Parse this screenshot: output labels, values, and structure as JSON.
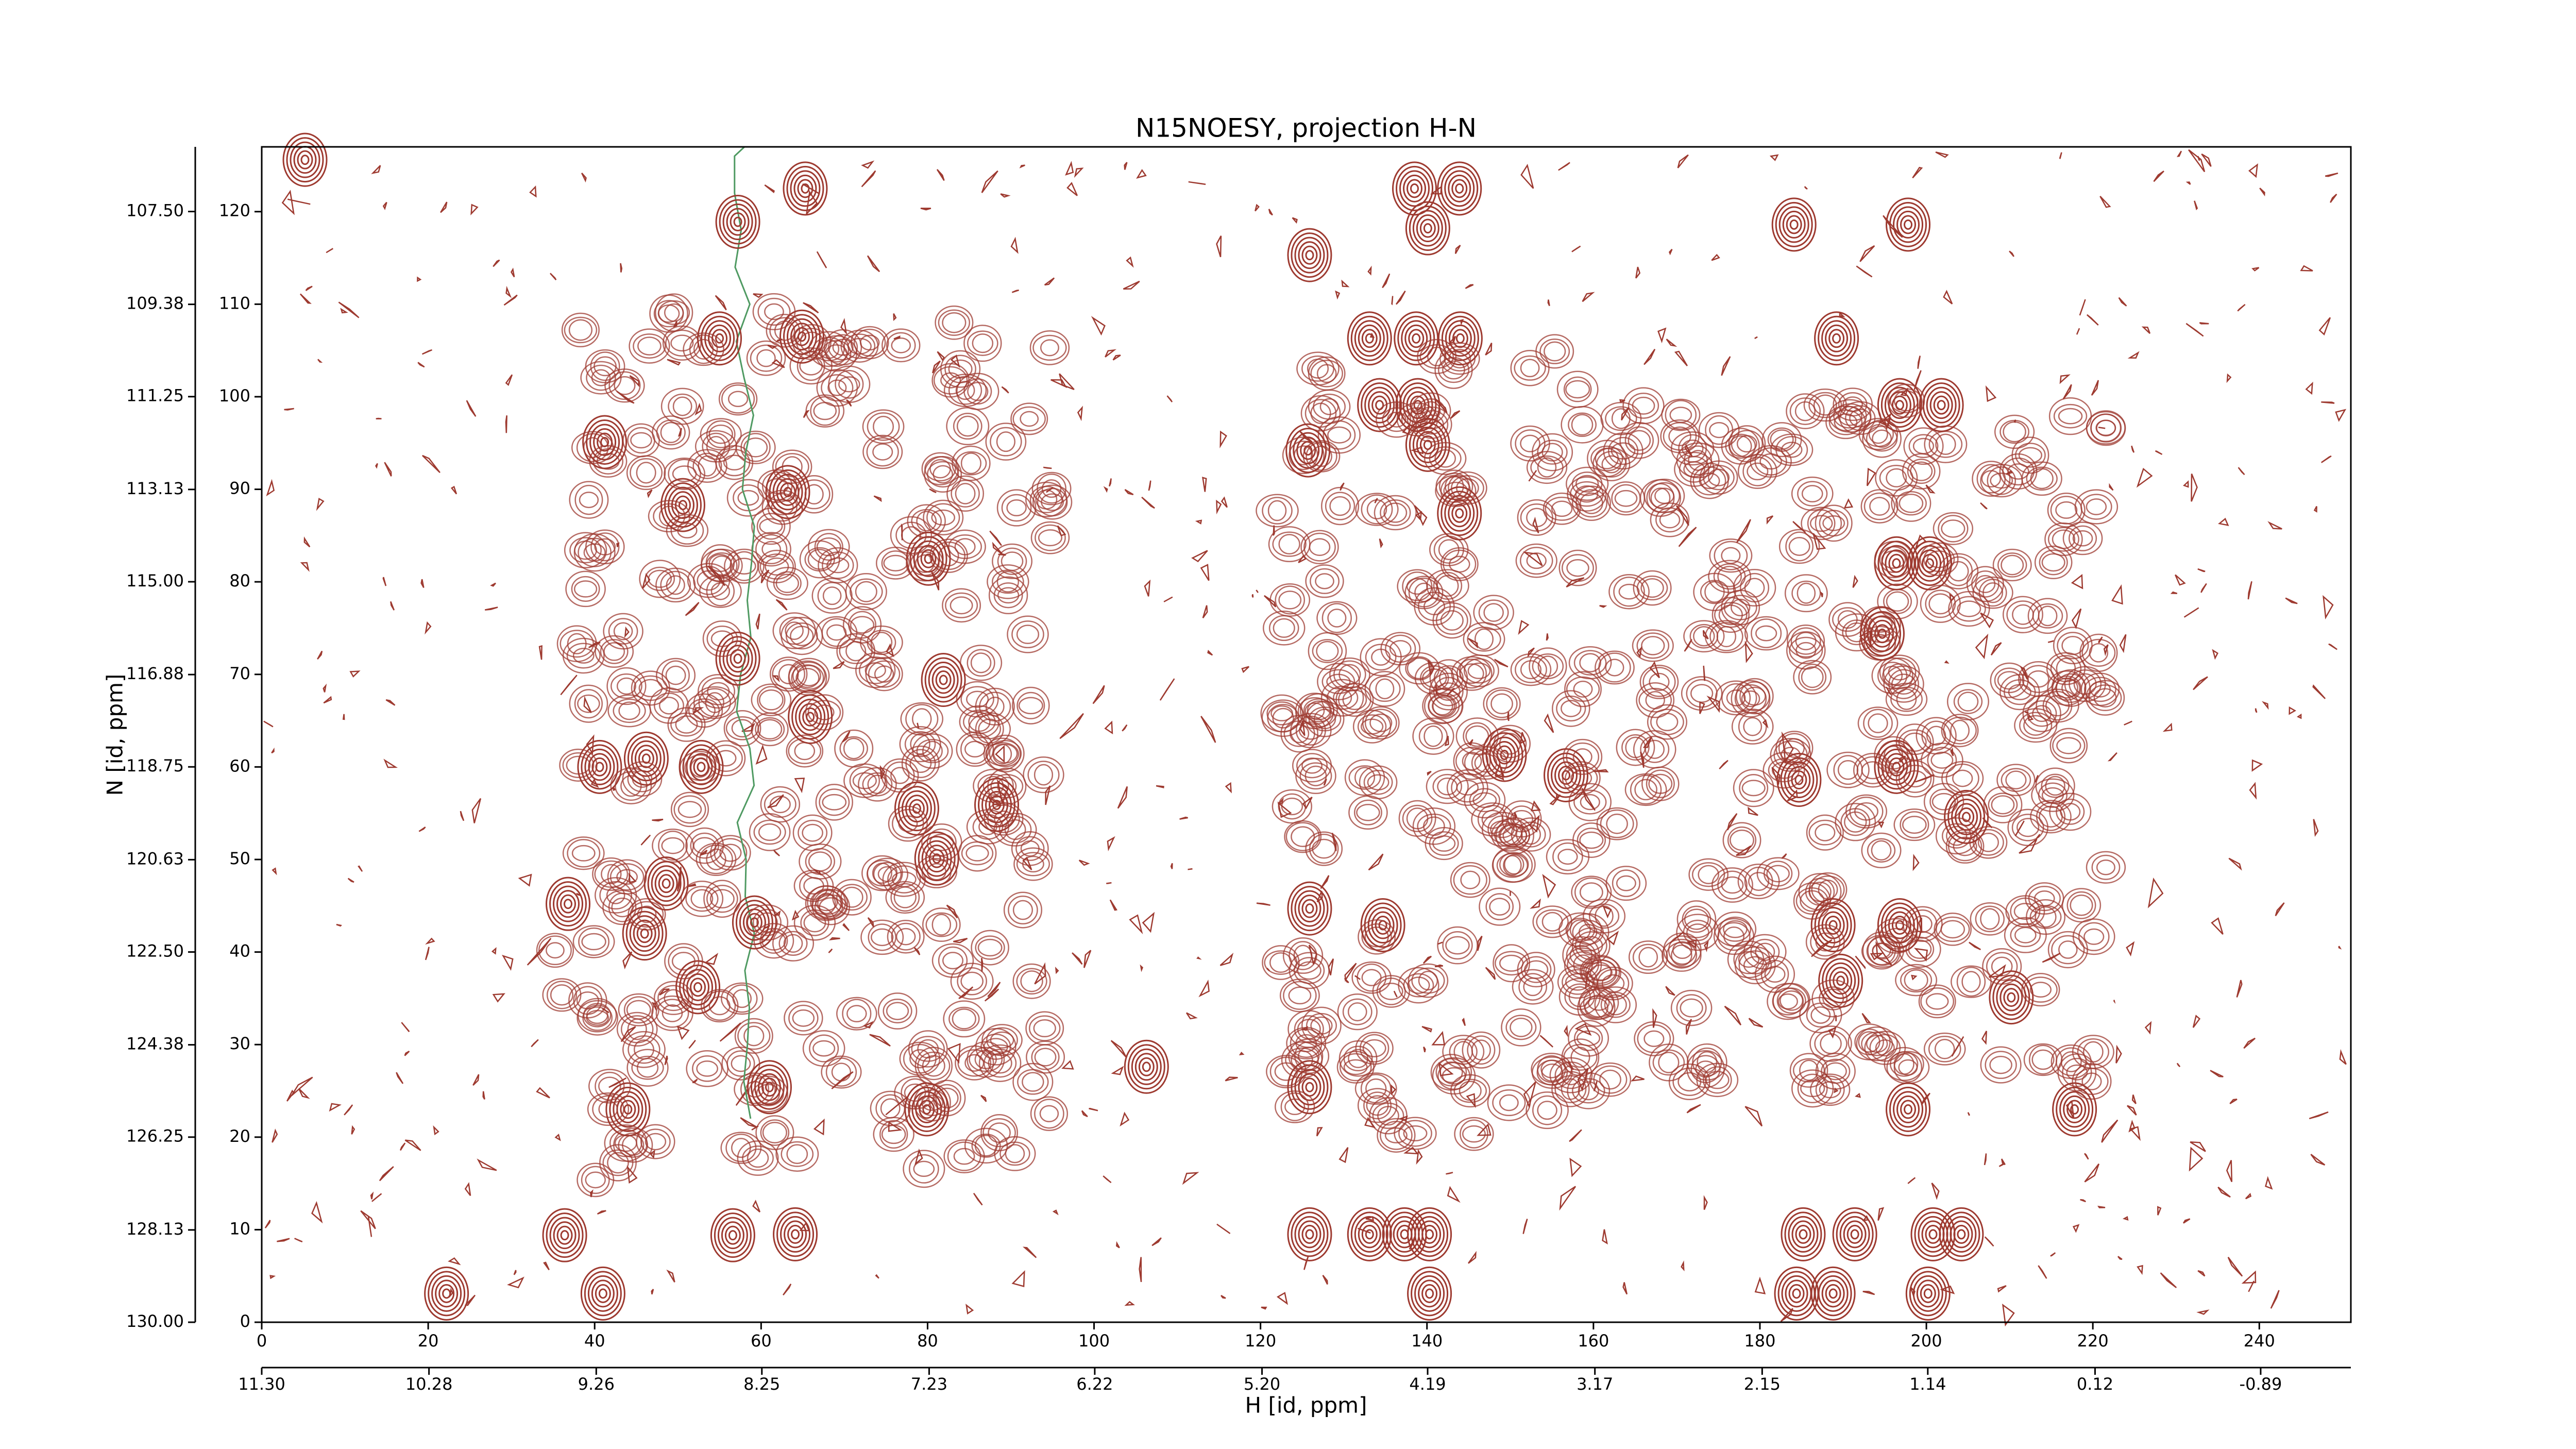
{
  "chart_data": {
    "type": "contour",
    "title": "N15NOESY, projection H-N",
    "xlabel": "H [id, ppm]",
    "ylabel": "N [id, ppm]",
    "xlim": [
      0,
      251
    ],
    "xticks": [
      0,
      20,
      40,
      60,
      80,
      100,
      120,
      140,
      160,
      180,
      200,
      220,
      240
    ],
    "ylim": [
      0,
      127
    ],
    "yticks": [
      0,
      10,
      20,
      30,
      40,
      50,
      60,
      70,
      80,
      90,
      100,
      110,
      120
    ],
    "x2lim": [
      11.3,
      -1.44
    ],
    "x2ticks": [
      {
        "value": 11.3,
        "label": "11.30"
      },
      10.28,
      9.26,
      8.25,
      7.23,
      6.22,
      {
        "value": 5.2,
        "label": "5.20"
      },
      4.19,
      3.17,
      2.15,
      1.14,
      0.12,
      -0.89
    ],
    "y2lim": [
      130.0,
      106.19
    ],
    "y2ticks": [
      {
        "value": 130.0,
        "label": "130.00"
      },
      128.13,
      126.25,
      124.38,
      {
        "value": 122.5,
        "label": "122.50"
      },
      120.63,
      118.75,
      116.88,
      {
        "value": 115.0,
        "label": "115.00"
      },
      113.13,
      111.25,
      109.38,
      {
        "value": 107.5,
        "label": "107.50"
      }
    ],
    "color": "#9e3a30",
    "negative_color": "#4f9a62",
    "peaks": {
      "x": [
        65.3,
        57.2,
        55,
        64.9,
        125.9,
        138.5,
        143.9,
        140.1,
        133.1,
        138.7,
        144,
        134.3,
        138.9,
        140.1,
        125.7,
        189.2,
        197.8,
        184.1,
        196.8,
        201.8,
        196.4,
        200.4,
        143.9,
        80.1,
        81.9,
        78.7,
        88.3,
        81.1,
        40.6,
        46.2,
        52.8,
        36.8,
        48.6,
        46,
        59.2,
        52.4,
        44,
        61,
        79.9,
        36.4,
        56.6,
        64.1,
        41,
        22.2,
        106.3,
        125.9,
        125.9,
        125.9,
        133.1,
        137.3,
        140.3,
        140.3,
        191.4,
        185.2,
        200.8,
        204.2,
        197.8,
        217.8,
        200.2,
        188.8,
        184.4,
        210.2,
        189.7,
        188.8,
        196.8,
        204.8,
        196.4,
        184.7,
        194.7,
        156.7,
        149.3,
        134.7,
        5.2,
        41.2,
        50.6,
        63.2,
        57.2,
        65.9
      ],
      "y": [
        122.5,
        118.9,
        106.3,
        106.5,
        115.3,
        122.5,
        122.5,
        118.2,
        106.3,
        106.3,
        106.3,
        99.1,
        99.1,
        94.8,
        94.2,
        106.3,
        118.6,
        118.6,
        99.1,
        99.1,
        82,
        82,
        87.4,
        82.5,
        69.4,
        55.5,
        55.9,
        50.1,
        60,
        60.9,
        60,
        45.2,
        47.4,
        42,
        43.2,
        36.2,
        23,
        25.4,
        23,
        9.4,
        9.4,
        9.5,
        3.1,
        3.1,
        27.6,
        25.4,
        44.7,
        9.5,
        9.5,
        9.5,
        9.5,
        3.1,
        9.5,
        9.5,
        9.5,
        9.5,
        23,
        23,
        3.1,
        3.1,
        3.1,
        35.1,
        36.9,
        42.9,
        42.9,
        54.6,
        60,
        58.6,
        74.4,
        59.1,
        61.3,
        42.9,
        125.6,
        95.1,
        88.3,
        89.7,
        71.7,
        65.4
      ]
    }
  }
}
